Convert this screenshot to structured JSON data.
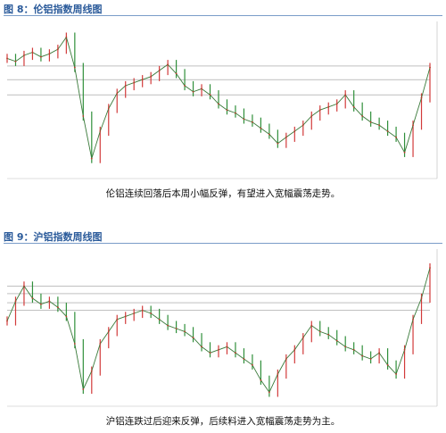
{
  "figures": [
    {
      "title": "图 8：伦铝指数周线图",
      "caption": "伦铝连续回落后本周小幅反弹，有望进入宽幅震荡走势。",
      "chart_data": {
        "type": "line",
        "title": "",
        "xlabel": "",
        "ylabel": "",
        "grid": false,
        "x": [
          0,
          2,
          4,
          6,
          8,
          10,
          12,
          14,
          16,
          18,
          20,
          22,
          24,
          26,
          28,
          30,
          32,
          34,
          36,
          38,
          40,
          42,
          44,
          46,
          48,
          50,
          52,
          54,
          56,
          58,
          60,
          62,
          64,
          66,
          68,
          70,
          72,
          74,
          76,
          78,
          80,
          82,
          84,
          86,
          88,
          90,
          92,
          94,
          96,
          98,
          100
        ],
        "values": [
          78,
          76,
          80,
          82,
          79,
          81,
          84,
          92,
          72,
          40,
          12,
          30,
          45,
          55,
          60,
          62,
          64,
          66,
          70,
          74,
          68,
          60,
          56,
          58,
          54,
          48,
          44,
          42,
          38,
          36,
          32,
          28,
          22,
          26,
          30,
          34,
          40,
          44,
          46,
          48,
          54,
          46,
          40,
          36,
          34,
          30,
          26,
          16,
          34,
          52,
          72
        ],
        "ylim": [
          0,
          100
        ],
        "reference_lines": [
          73,
          64,
          54
        ]
      }
    },
    {
      "title": "图 9：沪铝指数周线图",
      "caption": "沪铝连跌过后迎来反弹，后续料进入宽幅震荡走势为主。",
      "chart_data": {
        "type": "line",
        "title": "",
        "xlabel": "",
        "ylabel": "",
        "grid": false,
        "x": [
          0,
          2,
          4,
          6,
          8,
          10,
          12,
          14,
          16,
          18,
          20,
          22,
          24,
          26,
          28,
          30,
          32,
          34,
          36,
          38,
          40,
          42,
          44,
          46,
          48,
          50,
          52,
          54,
          56,
          58,
          60,
          62,
          64,
          66,
          68,
          70,
          72,
          74,
          76,
          78,
          80,
          82,
          84,
          86,
          88,
          90,
          92,
          94,
          96,
          98,
          100
        ],
        "values": [
          55,
          68,
          78,
          70,
          66,
          68,
          64,
          58,
          40,
          10,
          22,
          40,
          48,
          56,
          58,
          60,
          62,
          60,
          56,
          52,
          50,
          48,
          44,
          38,
          34,
          36,
          38,
          34,
          30,
          26,
          16,
          8,
          20,
          30,
          36,
          44,
          52,
          48,
          46,
          42,
          38,
          36,
          32,
          30,
          34,
          26,
          20,
          36,
          56,
          70,
          90
        ],
        "ylim": [
          0,
          100
        ],
        "reference_lines": [
          78,
          73,
          67,
          62
        ]
      }
    }
  ]
}
